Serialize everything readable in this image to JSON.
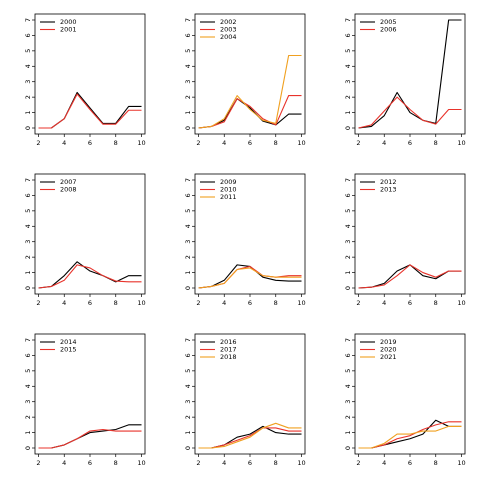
{
  "colors": {
    "black": "#000000",
    "red": "#e8332b",
    "orange": "#f0a020"
  },
  "chart_data": [
    {
      "type": "line",
      "x": [
        2,
        3,
        4,
        5,
        6,
        7,
        8,
        9,
        10
      ],
      "xticks": [
        2,
        4,
        6,
        8,
        10
      ],
      "yticks": [
        0,
        1,
        2,
        3,
        4,
        5,
        6,
        7
      ],
      "ylim": [
        0,
        7
      ],
      "xlim": [
        2,
        10
      ],
      "series": [
        {
          "name": "2000",
          "color": "#000000",
          "values": [
            0,
            0,
            0.6,
            2.3,
            1.3,
            0.3,
            0.3,
            1.4,
            1.4
          ]
        },
        {
          "name": "2001",
          "color": "#e8332b",
          "values": [
            0,
            0,
            0.6,
            2.2,
            1.2,
            0.25,
            0.25,
            1.15,
            1.15
          ]
        }
      ]
    },
    {
      "type": "line",
      "x": [
        2,
        3,
        4,
        5,
        6,
        7,
        8,
        9,
        10
      ],
      "xticks": [
        2,
        4,
        6,
        8,
        10
      ],
      "yticks": [
        0,
        1,
        2,
        3,
        4,
        5,
        6,
        7
      ],
      "ylim": [
        0,
        7
      ],
      "xlim": [
        2,
        10
      ],
      "series": [
        {
          "name": "2002",
          "color": "#000000",
          "values": [
            0,
            0.1,
            0.5,
            1.9,
            1.3,
            0.45,
            0.2,
            0.9,
            0.9
          ]
        },
        {
          "name": "2003",
          "color": "#e8332b",
          "values": [
            0,
            0.1,
            0.4,
            1.9,
            1.4,
            0.6,
            0.2,
            2.1,
            2.1
          ]
        },
        {
          "name": "2004",
          "color": "#f0a020",
          "values": [
            0,
            0.1,
            0.6,
            2.1,
            1.2,
            0.5,
            0.3,
            4.7,
            4.7
          ]
        }
      ]
    },
    {
      "type": "line",
      "x": [
        2,
        3,
        4,
        5,
        6,
        7,
        8,
        9,
        10
      ],
      "xticks": [
        2,
        4,
        6,
        8,
        10
      ],
      "yticks": [
        0,
        1,
        2,
        3,
        4,
        5,
        6,
        7
      ],
      "ylim": [
        0,
        7
      ],
      "xlim": [
        2,
        10
      ],
      "series": [
        {
          "name": "2005",
          "color": "#000000",
          "values": [
            0,
            0.1,
            0.8,
            2.3,
            1.0,
            0.5,
            0.3,
            7.0,
            7.0
          ]
        },
        {
          "name": "2006",
          "color": "#e8332b",
          "values": [
            0,
            0.2,
            1.1,
            2.0,
            1.2,
            0.5,
            0.25,
            1.2,
            1.2
          ]
        }
      ]
    },
    {
      "type": "line",
      "x": [
        2,
        3,
        4,
        5,
        6,
        7,
        8,
        9,
        10
      ],
      "xticks": [
        2,
        4,
        6,
        8,
        10
      ],
      "yticks": [
        0,
        1,
        2,
        3,
        4,
        5,
        6,
        7
      ],
      "ylim": [
        0,
        7
      ],
      "xlim": [
        2,
        10
      ],
      "series": [
        {
          "name": "2007",
          "color": "#000000",
          "values": [
            0,
            0.1,
            0.8,
            1.7,
            1.1,
            0.8,
            0.4,
            0.8,
            0.8
          ]
        },
        {
          "name": "2008",
          "color": "#e8332b",
          "values": [
            0,
            0.1,
            0.5,
            1.5,
            1.3,
            0.8,
            0.45,
            0.4,
            0.4
          ]
        }
      ]
    },
    {
      "type": "line",
      "x": [
        2,
        3,
        4,
        5,
        6,
        7,
        8,
        9,
        10
      ],
      "xticks": [
        2,
        4,
        6,
        8,
        10
      ],
      "yticks": [
        0,
        1,
        2,
        3,
        4,
        5,
        6,
        7
      ],
      "ylim": [
        0,
        7
      ],
      "xlim": [
        2,
        10
      ],
      "series": [
        {
          "name": "2009",
          "color": "#000000",
          "values": [
            0,
            0.1,
            0.5,
            1.5,
            1.4,
            0.7,
            0.5,
            0.45,
            0.45
          ]
        },
        {
          "name": "2010",
          "color": "#e8332b",
          "values": [
            0,
            0.1,
            0.3,
            1.2,
            1.4,
            0.8,
            0.7,
            0.8,
            0.8
          ]
        },
        {
          "name": "2011",
          "color": "#f0a020",
          "values": [
            0,
            0.1,
            0.3,
            1.2,
            1.3,
            0.8,
            0.7,
            0.7,
            0.7
          ]
        }
      ]
    },
    {
      "type": "line",
      "x": [
        2,
        3,
        4,
        5,
        6,
        7,
        8,
        9,
        10
      ],
      "xticks": [
        2,
        4,
        6,
        8,
        10
      ],
      "yticks": [
        0,
        1,
        2,
        3,
        4,
        5,
        6,
        7
      ],
      "ylim": [
        0,
        7
      ],
      "xlim": [
        2,
        10
      ],
      "series": [
        {
          "name": "2012",
          "color": "#000000",
          "values": [
            0,
            0.05,
            0.3,
            1.1,
            1.5,
            0.8,
            0.6,
            1.1,
            1.1
          ]
        },
        {
          "name": "2013",
          "color": "#e8332b",
          "values": [
            0,
            0.05,
            0.2,
            0.8,
            1.5,
            1.0,
            0.7,
            1.1,
            1.1
          ]
        }
      ]
    },
    {
      "type": "line",
      "x": [
        2,
        3,
        4,
        5,
        6,
        7,
        8,
        9,
        10
      ],
      "xticks": [
        2,
        4,
        6,
        8,
        10
      ],
      "yticks": [
        0,
        1,
        2,
        3,
        4,
        5,
        6,
        7
      ],
      "ylim": [
        0,
        7
      ],
      "xlim": [
        2,
        10
      ],
      "series": [
        {
          "name": "2014",
          "color": "#000000",
          "values": [
            0,
            0,
            0.2,
            0.6,
            1.0,
            1.1,
            1.2,
            1.5,
            1.5
          ]
        },
        {
          "name": "2015",
          "color": "#e8332b",
          "values": [
            0,
            0,
            0.2,
            0.6,
            1.1,
            1.2,
            1.1,
            1.1,
            1.1
          ]
        }
      ]
    },
    {
      "type": "line",
      "x": [
        2,
        3,
        4,
        5,
        6,
        7,
        8,
        9,
        10
      ],
      "xticks": [
        2,
        4,
        6,
        8,
        10
      ],
      "yticks": [
        0,
        1,
        2,
        3,
        4,
        5,
        6,
        7
      ],
      "ylim": [
        0,
        7
      ],
      "xlim": [
        2,
        10
      ],
      "series": [
        {
          "name": "2016",
          "color": "#000000",
          "values": [
            0,
            0,
            0.2,
            0.7,
            0.9,
            1.4,
            1.0,
            0.9,
            0.9
          ]
        },
        {
          "name": "2017",
          "color": "#e8332b",
          "values": [
            0,
            0,
            0.2,
            0.5,
            0.8,
            1.3,
            1.3,
            1.1,
            1.1
          ]
        },
        {
          "name": "2018",
          "color": "#f0a020",
          "values": [
            0,
            0,
            0.1,
            0.4,
            0.7,
            1.3,
            1.6,
            1.3,
            1.3
          ]
        }
      ]
    },
    {
      "type": "line",
      "x": [
        2,
        3,
        4,
        5,
        6,
        7,
        8,
        9,
        10
      ],
      "xticks": [
        2,
        4,
        6,
        8,
        10
      ],
      "yticks": [
        0,
        1,
        2,
        3,
        4,
        5,
        6,
        7
      ],
      "ylim": [
        0,
        7
      ],
      "xlim": [
        2,
        10
      ],
      "series": [
        {
          "name": "2019",
          "color": "#000000",
          "values": [
            0,
            0,
            0.2,
            0.4,
            0.6,
            0.9,
            1.8,
            1.4,
            1.4
          ]
        },
        {
          "name": "2020",
          "color": "#e8332b",
          "values": [
            0,
            0,
            0.2,
            0.6,
            0.8,
            1.2,
            1.5,
            1.7,
            1.7
          ]
        },
        {
          "name": "2021",
          "color": "#f0a020",
          "values": [
            0,
            0,
            0.3,
            0.9,
            0.9,
            1.1,
            1.1,
            1.4,
            1.4
          ]
        }
      ]
    }
  ]
}
